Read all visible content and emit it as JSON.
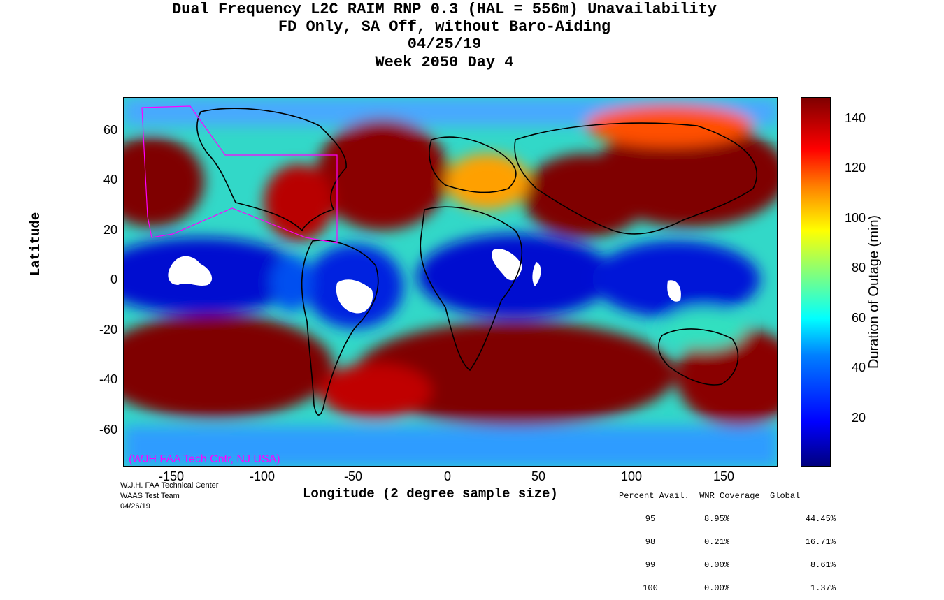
{
  "title": {
    "line1": "Dual Frequency L2C RAIM RNP 0.3 (HAL = 556m) Unavailability",
    "line2": "FD Only, SA Off, without Baro-Aiding",
    "line3": "04/25/19",
    "line4": "Week 2050 Day 4"
  },
  "axes": {
    "xlabel": "Longitude (2 degree sample size)",
    "ylabel": "Latitude",
    "x_ticks": [
      "-150",
      "-100",
      "-50",
      "0",
      "50",
      "100",
      "150"
    ],
    "y_ticks": [
      "60",
      "40",
      "20",
      "0",
      "-20",
      "-40",
      "-60"
    ],
    "x_range": [
      -180,
      180
    ],
    "y_range": [
      -74,
      74
    ]
  },
  "colorbar": {
    "label": "Duration of Outage (min)",
    "ticks": [
      "140",
      "120",
      "100",
      "80",
      "60",
      "40",
      "20"
    ],
    "range": [
      0,
      150
    ],
    "colors": [
      "#00007f",
      "#0000ff",
      "#007fff",
      "#00ffff",
      "#7fff7f",
      "#ffff00",
      "#ff7f00",
      "#ff0000",
      "#7f0000"
    ]
  },
  "watermark": "(WJH FAA Tech Cntr, NJ USA)",
  "credit": {
    "line1": "W.J.H. FAA Technical Center",
    "line2": "WAAS Test Team",
    "line3": "04/26/19"
  },
  "stats": {
    "header": "Percent Avail.  WNR Coverage  Global",
    "rows": [
      {
        "avail": "95",
        "wnr": "8.95%",
        "global": "44.45%"
      },
      {
        "avail": "98",
        "wnr": "0.21%",
        "global": "16.71%"
      },
      {
        "avail": "99",
        "wnr": "0.00%",
        "global": "8.61%"
      },
      {
        "avail": "100",
        "wnr": "0.00%",
        "global": "1.37%"
      }
    ]
  }
}
